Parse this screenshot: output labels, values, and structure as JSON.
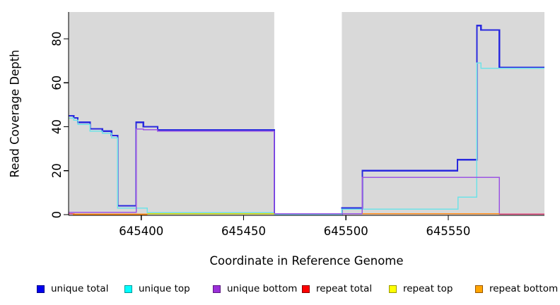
{
  "figure": {
    "x_axis_title": "Coordinate in Reference Genome",
    "y_axis_title": "Read Coverage Depth"
  },
  "chart_data": {
    "type": "line",
    "subtype": "step-after",
    "title": "",
    "xlabel": "Coordinate in Reference Genome",
    "ylabel": "Read Coverage Depth",
    "xlim": [
      645364.5,
      645597
    ],
    "ylim": [
      -0.3,
      92.2
    ],
    "x_ticks": [
      645400,
      645450,
      645500,
      645550
    ],
    "y_ticks": [
      0,
      20,
      40,
      60,
      80
    ],
    "grid": false,
    "legend_position": "bottom",
    "plot_bg_color": "#d9d9d9",
    "axis_color": "#000000",
    "no_data_band": {
      "x_start": 645465,
      "x_end": 645498,
      "color": "#ffffff"
    },
    "series": [
      {
        "name": "unique total",
        "color": "#2a2ade",
        "swatch": "#0000ee",
        "swatch_border": "#000088",
        "width": 2.2,
        "paths": [
          [
            [
              645364.5,
              45
            ],
            [
              645367,
              44
            ],
            [
              645369,
              42
            ],
            [
              645375,
              39
            ],
            [
              645381,
              38
            ],
            [
              645385.5,
              36
            ],
            [
              645388.5,
              4
            ],
            [
              645397.5,
              42
            ],
            [
              645401,
              40
            ],
            [
              645408,
              38.5
            ],
            [
              645465,
              0
            ],
            [
              645498,
              3
            ],
            [
              645508,
              20
            ],
            [
              645554.5,
              25
            ],
            [
              645564,
              86
            ],
            [
              645566,
              84
            ],
            [
              645575,
              67
            ],
            [
              645597,
              67
            ]
          ]
        ]
      },
      {
        "name": "unique top",
        "color": "#6fe2e8",
        "swatch": "#00ffff",
        "swatch_border": "#009999",
        "width": 1.5,
        "paths": [
          [
            [
              645364.5,
              44
            ],
            [
              645367,
              43
            ],
            [
              645369,
              41
            ],
            [
              645375,
              38
            ],
            [
              645381,
              37
            ],
            [
              645385.5,
              35
            ],
            [
              645388.5,
              3
            ],
            [
              645403,
              0.9
            ],
            [
              645465,
              0
            ],
            [
              645498,
              2.5
            ],
            [
              645554.8,
              8
            ],
            [
              645564,
              69
            ],
            [
              645566,
              66.6
            ],
            [
              645597,
              66.6
            ]
          ]
        ]
      },
      {
        "name": "unique bottom",
        "color": "#9c55e2",
        "swatch": "#9b30d9",
        "swatch_border": "#5c1880",
        "width": 1.5,
        "paths": [
          [
            [
              645364.5,
              1
            ],
            [
              645388.5,
              1
            ],
            [
              645397.5,
              39
            ],
            [
              645401,
              38.7
            ],
            [
              645408,
              38
            ],
            [
              645465,
              0.5
            ],
            [
              645508,
              17
            ],
            [
              645575,
              0.3
            ],
            [
              645597,
              0.3
            ]
          ]
        ]
      },
      {
        "name": "repeat total",
        "color": "#e0447a",
        "swatch": "#ff0000",
        "swatch_border": "#880000",
        "width": 1.5,
        "paths": [
          [
            [
              645364.5,
              0.4
            ],
            [
              645367.5,
              0.4
            ]
          ],
          [
            [
              645575,
              0.3
            ],
            [
              645597,
              0.3
            ]
          ]
        ]
      },
      {
        "name": "repeat top",
        "color": "#d8d800",
        "swatch": "#ffff00",
        "swatch_border": "#999900",
        "width": 1.5,
        "paths": [
          [
            [
              645403,
              0.5
            ],
            [
              645465,
              0.5
            ]
          ]
        ]
      },
      {
        "name": "repeat bottom",
        "color": "#ff8c1a",
        "swatch": "#ffa500",
        "swatch_border": "#995500",
        "width": 1.8,
        "paths": [
          [
            [
              645366.5,
              0.15
            ],
            [
              645403,
              0.15
            ]
          ],
          [
            [
              645508,
              0.4
            ],
            [
              645575,
              0.4
            ]
          ]
        ]
      }
    ]
  }
}
